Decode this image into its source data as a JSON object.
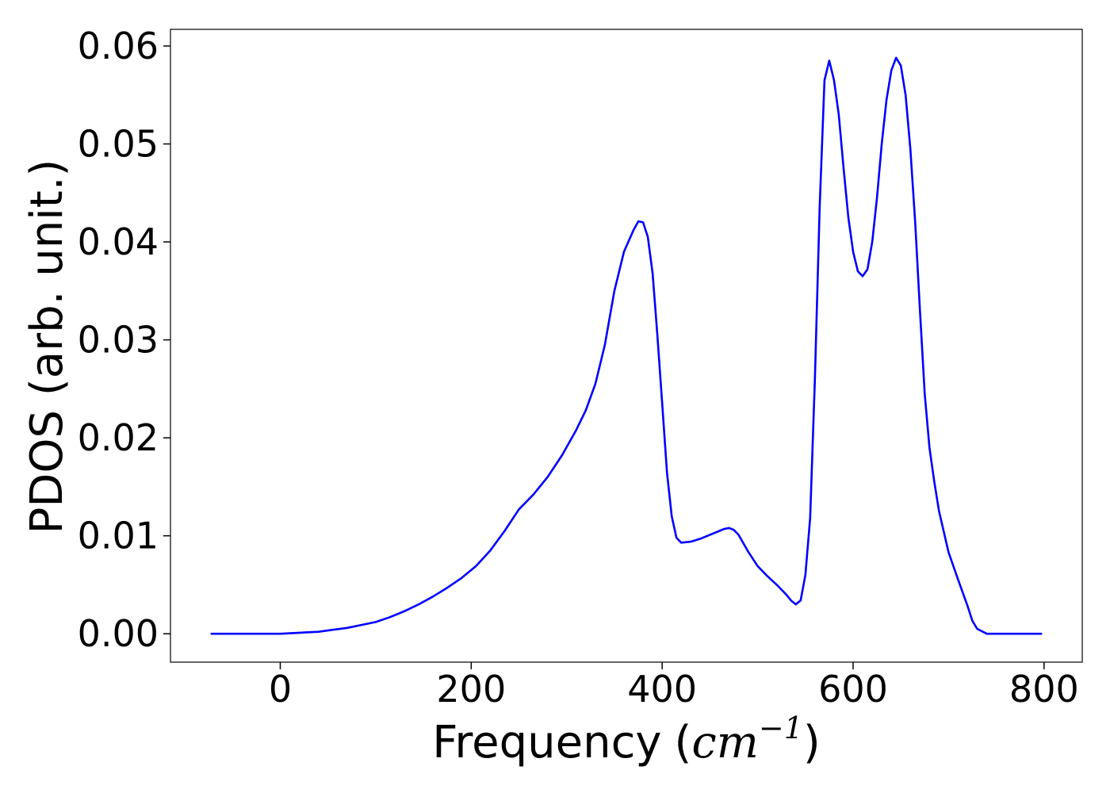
{
  "chart_data": {
    "type": "line",
    "xlabel": "Frequency",
    "xlabel_unit_open": "(",
    "xlabel_unit_base": "cm",
    "xlabel_unit_exp": "−1",
    "xlabel_unit_close": ")",
    "ylabel": "PDOS (arb. unit.)",
    "xlim": [
      -115,
      840
    ],
    "ylim": [
      -0.0029,
      0.0617
    ],
    "x_ticks": [
      0,
      200,
      400,
      600,
      800
    ],
    "x_tick_labels": [
      "0",
      "200",
      "400",
      "600",
      "800"
    ],
    "y_ticks": [
      0.0,
      0.01,
      0.02,
      0.03,
      0.04,
      0.05,
      0.06
    ],
    "y_tick_labels": [
      "0.00",
      "0.01",
      "0.02",
      "0.03",
      "0.04",
      "0.05",
      "0.06"
    ],
    "grid": false,
    "line_color": "#0000ff",
    "series": [
      {
        "x": [
          -72,
          -40,
          0,
          20,
          40,
          55,
          70,
          85,
          100,
          115,
          130,
          145,
          160,
          175,
          190,
          205,
          220,
          235,
          250,
          265,
          280,
          295,
          310,
          320,
          330,
          340,
          350,
          360,
          370,
          375,
          380,
          385,
          390,
          395,
          400,
          405,
          410,
          415,
          420,
          430,
          440,
          450,
          460,
          465,
          470,
          475,
          480,
          490,
          500,
          510,
          520,
          530,
          535,
          540,
          545,
          550,
          555,
          560,
          565,
          570,
          575,
          580,
          585,
          590,
          595,
          600,
          605,
          610,
          615,
          620,
          625,
          630,
          635,
          640,
          645,
          650,
          655,
          660,
          665,
          670,
          675,
          680,
          685,
          690,
          700,
          710,
          720,
          725,
          730,
          740,
          760,
          797
        ],
        "y": [
          0.0,
          0.0,
          0.0,
          0.0001,
          0.0002,
          0.0004,
          0.0006,
          0.0009,
          0.0012,
          0.0017,
          0.0023,
          0.003,
          0.0038,
          0.0047,
          0.0057,
          0.0069,
          0.0085,
          0.0105,
          0.0127,
          0.0142,
          0.016,
          0.0182,
          0.0208,
          0.0228,
          0.0255,
          0.0295,
          0.035,
          0.039,
          0.0412,
          0.0421,
          0.042,
          0.0405,
          0.0368,
          0.0305,
          0.0235,
          0.0165,
          0.012,
          0.0098,
          0.0093,
          0.0094,
          0.0097,
          0.0101,
          0.0105,
          0.0107,
          0.0108,
          0.0106,
          0.0101,
          0.0084,
          0.0069,
          0.0059,
          0.005,
          0.004,
          0.0034,
          0.003,
          0.0034,
          0.006,
          0.0118,
          0.026,
          0.0435,
          0.0565,
          0.0585,
          0.0565,
          0.053,
          0.0475,
          0.0425,
          0.039,
          0.037,
          0.0365,
          0.0372,
          0.04,
          0.0445,
          0.05,
          0.0545,
          0.0575,
          0.0588,
          0.058,
          0.055,
          0.0495,
          0.042,
          0.033,
          0.0245,
          0.019,
          0.0155,
          0.0125,
          0.0083,
          0.0055,
          0.0028,
          0.0013,
          0.0005,
          0.0,
          0.0,
          0.0
        ]
      }
    ]
  }
}
